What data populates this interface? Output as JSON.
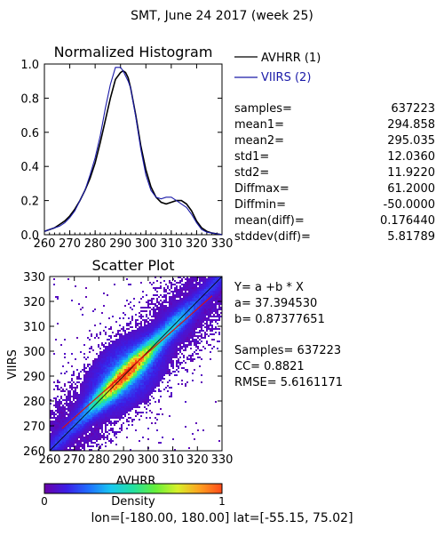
{
  "page": {
    "title": "SMT,  June 24 2017 (week 25)",
    "footer": "lon=[-180.00, 180.00] lat=[-55.15, 75.02]"
  },
  "histogram": {
    "title": "Normalized Histogram",
    "legend": [
      {
        "label": "AVHRR (1)",
        "color": "#000000"
      },
      {
        "label": "VIIRS (2)",
        "color": "#1a1aa8"
      }
    ]
  },
  "stats": [
    {
      "label": "samples=",
      "value": "637223"
    },
    {
      "label": "mean1=",
      "value": "294.858"
    },
    {
      "label": "mean2=",
      "value": "295.035"
    },
    {
      "label": "std1=",
      "value": "12.0360"
    },
    {
      "label": "std2=",
      "value": "11.9220"
    },
    {
      "label": "Diffmax=",
      "value": "61.2000"
    },
    {
      "label": "Diffmin=",
      "value": "-50.0000"
    },
    {
      "label": "mean(diff)=",
      "value": "0.176440"
    },
    {
      "label": "stddev(diff)=",
      "value": "5.81789"
    }
  ],
  "scatter": {
    "title": "Scatter Plot",
    "equation": "Y= a +b * X",
    "a_text": "a= 37.394530",
    "b_text": "b= 0.87377651",
    "samples_text": "Samples= 637223",
    "cc_text": "CC=  0.8821",
    "rmse_text": "RMSE= 5.6161171"
  },
  "colorbar": {
    "label": "Density",
    "min_label": "0",
    "max_label": "1",
    "colors": [
      "#6a00a8",
      "#3b1ee6",
      "#1f6fff",
      "#18c8f0",
      "#22e0a0",
      "#66ef3a",
      "#d8f02a",
      "#ffa020",
      "#ff4a1a"
    ]
  },
  "colors": {
    "avhrr": "#000000",
    "viirs": "#1a1aa8",
    "fit_line": "#d81010",
    "one_to_one": "#000000"
  },
  "chart_data": [
    {
      "type": "line",
      "title": "Normalized Histogram",
      "xlabel": "",
      "ylabel": "",
      "xlim": [
        260,
        330
      ],
      "ylim": [
        0.0,
        1.0
      ],
      "x_ticks": [
        "260",
        "270",
        "280",
        "290",
        "300",
        "310",
        "320",
        "330"
      ],
      "y_ticks": [
        "0.0",
        "0.2",
        "0.4",
        "0.6",
        "0.8",
        "1.0"
      ],
      "x": [
        260,
        262,
        264,
        266,
        268,
        270,
        272,
        274,
        276,
        278,
        280,
        282,
        284,
        286,
        288,
        290,
        291,
        292,
        293,
        294,
        296,
        298,
        300,
        302,
        304,
        306,
        308,
        310,
        312,
        314,
        316,
        318,
        320,
        322,
        324,
        326,
        328,
        330
      ],
      "series": [
        {
          "name": "AVHRR (1)",
          "values": [
            0.02,
            0.03,
            0.04,
            0.06,
            0.08,
            0.11,
            0.15,
            0.2,
            0.26,
            0.33,
            0.42,
            0.54,
            0.67,
            0.8,
            0.91,
            0.95,
            0.96,
            0.95,
            0.92,
            0.86,
            0.7,
            0.52,
            0.38,
            0.28,
            0.22,
            0.19,
            0.18,
            0.19,
            0.2,
            0.2,
            0.18,
            0.14,
            0.08,
            0.04,
            0.02,
            0.01,
            0.005,
            0.0
          ]
        },
        {
          "name": "VIIRS (2)",
          "values": [
            0.02,
            0.03,
            0.04,
            0.05,
            0.07,
            0.1,
            0.14,
            0.2,
            0.26,
            0.35,
            0.45,
            0.58,
            0.74,
            0.88,
            0.98,
            0.98,
            0.96,
            0.93,
            0.9,
            0.86,
            0.69,
            0.5,
            0.35,
            0.26,
            0.22,
            0.21,
            0.22,
            0.22,
            0.2,
            0.18,
            0.16,
            0.12,
            0.07,
            0.03,
            0.015,
            0.01,
            0.005,
            0.0
          ]
        }
      ]
    },
    {
      "type": "heatmap",
      "title": "Scatter Plot",
      "xlabel": "AVHRR",
      "ylabel": "VIIRS",
      "xlim": [
        260,
        330
      ],
      "ylim": [
        260,
        330
      ],
      "x_ticks": [
        "260",
        "270",
        "280",
        "290",
        "300",
        "310",
        "320",
        "330"
      ],
      "y_ticks": [
        "260",
        "270",
        "280",
        "290",
        "300",
        "310",
        "320",
        "330"
      ],
      "fit": {
        "a": 37.39453,
        "b": 0.87377651
      },
      "one_to_one": true,
      "density_scale": [
        0,
        1
      ]
    }
  ]
}
